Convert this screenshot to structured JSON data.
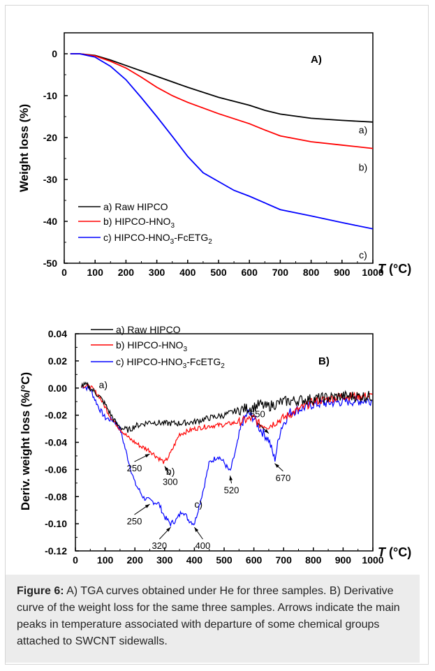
{
  "caption": {
    "label": "Figure 6:",
    "text": " A) TGA curves obtained under He for three samples. B) Derivative curve of the weight loss for the same three samples. Arrows indicate the main peaks in temperature associated with departure of some chemical groups attached to SWCNT sidewalls."
  },
  "colors": {
    "raw": "#000000",
    "hno3": "#ff0000",
    "fcetg": "#0000ff"
  },
  "chart_data": [
    {
      "type": "line",
      "panel_label": "A)",
      "xlabel": "T (°C)",
      "ylabel": "Weight loss (%)",
      "xlim": [
        0,
        1000
      ],
      "ylim": [
        -50,
        5
      ],
      "xticks": [
        0,
        100,
        200,
        300,
        400,
        500,
        600,
        700,
        800,
        900,
        1000
      ],
      "yticks": [
        0,
        -10,
        -20,
        -30,
        -40,
        -50
      ],
      "legend": {
        "placement": "bottom-left",
        "entries": [
          "a) Raw HIPCO",
          "b) HIPCO-HNO3",
          "c) HIPCO-HNO3-FcETG2"
        ]
      },
      "series": [
        {
          "name": "a) Raw HIPCO",
          "end_label": "a)",
          "x": [
            20,
            50,
            100,
            150,
            200,
            300,
            400,
            500,
            600,
            650,
            700,
            800,
            900,
            1000
          ],
          "y": [
            0,
            0,
            -0.4,
            -1.5,
            -2.8,
            -5.4,
            -8,
            -10.4,
            -12.3,
            -13.5,
            -14.4,
            -15.4,
            -15.9,
            -16.3
          ]
        },
        {
          "name": "b) HIPCO-HNO3",
          "end_label": "b)",
          "x": [
            20,
            50,
            100,
            150,
            200,
            250,
            300,
            350,
            400,
            500,
            600,
            650,
            700,
            800,
            900,
            1000
          ],
          "y": [
            0,
            0,
            -0.5,
            -1.8,
            -3.4,
            -5.6,
            -8,
            -10,
            -11.6,
            -14.3,
            -16.7,
            -18.2,
            -19.6,
            -21,
            -21.8,
            -22.6
          ]
        },
        {
          "name": "c) HIPCO-HNO3-FcETG2",
          "end_label": "c)",
          "x": [
            20,
            50,
            100,
            150,
            200,
            250,
            300,
            350,
            400,
            450,
            500,
            550,
            600,
            650,
            700,
            800,
            900,
            1000
          ],
          "y": [
            0,
            0,
            -0.8,
            -3,
            -6.2,
            -10.5,
            -15,
            -19.7,
            -24.5,
            -28.4,
            -30.5,
            -32.6,
            -34,
            -35.6,
            -37.2,
            -38.7,
            -40.3,
            -41.8
          ]
        }
      ]
    },
    {
      "type": "line",
      "panel_label": "B)",
      "xlabel": "T (°C)",
      "ylabel": "Deriv. weight loss (%/°C)",
      "xlim": [
        0,
        1000
      ],
      "ylim": [
        -0.12,
        0.04
      ],
      "xticks": [
        0,
        100,
        200,
        300,
        400,
        500,
        600,
        700,
        800,
        900,
        1000
      ],
      "yticks": [
        0.04,
        0.02,
        0.0,
        -0.02,
        -0.04,
        -0.06,
        -0.08,
        -0.1,
        -0.12
      ],
      "legend": {
        "placement": "top-center",
        "entries": [
          "a) Raw HIPCO",
          "b) HIPCO-HNO3",
          "c) HIPCO-HNO3-FcETG2"
        ]
      },
      "series": [
        {
          "name": "a) Raw HIPCO",
          "curve_label": "a)",
          "x": [
            20,
            40,
            60,
            80,
            100,
            120,
            140,
            160,
            180,
            200,
            250,
            300,
            350,
            400,
            450,
            500,
            550,
            600,
            620,
            640,
            700,
            800,
            900,
            1000
          ],
          "y": [
            0.002,
            0.002,
            -0.002,
            -0.006,
            -0.012,
            -0.02,
            -0.027,
            -0.03,
            -0.031,
            -0.028,
            -0.025,
            -0.026,
            -0.026,
            -0.025,
            -0.022,
            -0.02,
            -0.016,
            -0.014,
            -0.012,
            -0.014,
            -0.01,
            -0.008,
            -0.006,
            -0.006
          ]
        },
        {
          "name": "b) HIPCO-HNO3",
          "curve_label": "b)",
          "x": [
            20,
            50,
            80,
            100,
            120,
            150,
            180,
            200,
            220,
            250,
            270,
            300,
            320,
            350,
            400,
            450,
            500,
            550,
            600,
            620,
            650,
            700,
            800,
            900,
            1000
          ],
          "y": [
            0.002,
            0.001,
            -0.006,
            -0.014,
            -0.022,
            -0.03,
            -0.037,
            -0.04,
            -0.043,
            -0.046,
            -0.05,
            -0.055,
            -0.048,
            -0.034,
            -0.03,
            -0.028,
            -0.027,
            -0.025,
            -0.022,
            -0.027,
            -0.028,
            -0.022,
            -0.01,
            -0.006,
            -0.006
          ]
        },
        {
          "name": "c) HIPCO-HNO3-FcETG2",
          "curve_label": "c)",
          "x": [
            20,
            50,
            80,
            100,
            130,
            150,
            180,
            200,
            230,
            250,
            280,
            300,
            320,
            340,
            360,
            380,
            400,
            430,
            450,
            480,
            500,
            520,
            540,
            560,
            580,
            600,
            620,
            650,
            670,
            690,
            720,
            800,
            900,
            1000
          ],
          "y": [
            0.002,
            -0.001,
            -0.015,
            -0.022,
            -0.024,
            -0.03,
            -0.055,
            -0.07,
            -0.081,
            -0.083,
            -0.085,
            -0.095,
            -0.1,
            -0.097,
            -0.09,
            -0.097,
            -0.1,
            -0.075,
            -0.055,
            -0.05,
            -0.055,
            -0.062,
            -0.045,
            -0.026,
            -0.018,
            -0.022,
            -0.03,
            -0.038,
            -0.053,
            -0.03,
            -0.018,
            -0.012,
            -0.01,
            -0.009
          ]
        }
      ],
      "annotations": [
        {
          "text": "250",
          "series": 1,
          "x": 250,
          "y": -0.046
        },
        {
          "text": "300",
          "series": 1,
          "x": 300,
          "y": -0.055
        },
        {
          "text": "250",
          "series": 2,
          "x": 250,
          "y": -0.083
        },
        {
          "text": "320",
          "series": 2,
          "x": 320,
          "y": -0.1
        },
        {
          "text": "400",
          "series": 2,
          "x": 400,
          "y": -0.1
        },
        {
          "text": "520",
          "series": 2,
          "x": 520,
          "y": -0.062
        },
        {
          "text": "650",
          "series": 1,
          "x": 650,
          "y": -0.036
        },
        {
          "text": "670",
          "series": 2,
          "x": 670,
          "y": -0.053
        }
      ]
    }
  ]
}
